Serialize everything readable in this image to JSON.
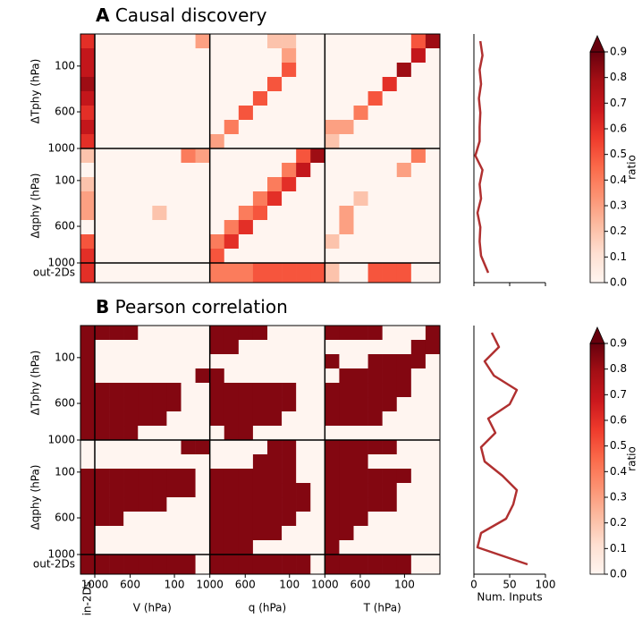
{
  "chart_data": [
    {
      "type": "heatmap",
      "label": "A",
      "title": "Causal discovery",
      "y_blocks": [
        {
          "name": "ΔTphy (hPa)",
          "ylim": [
            1000,
            -250
          ],
          "yticks": [
            100,
            600,
            1000
          ]
        },
        {
          "name": "Δqphy (hPa)",
          "ylim": [
            1000,
            -250
          ],
          "yticks": [
            100,
            600,
            1000
          ]
        },
        {
          "name": "out-2Ds"
        }
      ],
      "vlim": [
        0,
        0.9
      ],
      "colormap": [
        "#fff5f0",
        "#fee0d2",
        "#fcbba1",
        "#fc9272",
        "#fb6a4a",
        "#ef3b2c",
        "#cb181d",
        "#a50f15",
        "#67000d"
      ],
      "matrix": [
        [
          0.6,
          0,
          0,
          0,
          0,
          0,
          0,
          0,
          0.3,
          0,
          0,
          0,
          0,
          0.2,
          0.2,
          0,
          0,
          0,
          0,
          0,
          0,
          0,
          0,
          0.5,
          0.8
        ],
        [
          0.7,
          0,
          0,
          0,
          0,
          0,
          0,
          0,
          0,
          0,
          0,
          0,
          0,
          0,
          0.3,
          0,
          0,
          0,
          0,
          0,
          0,
          0,
          0,
          0.7,
          0
        ],
        [
          0.7,
          0,
          0,
          0,
          0,
          0,
          0,
          0,
          0,
          0,
          0,
          0,
          0,
          0,
          0.5,
          0,
          0,
          0,
          0,
          0,
          0,
          0,
          0.8,
          0,
          0
        ],
        [
          0.8,
          0,
          0,
          0,
          0,
          0,
          0,
          0,
          0,
          0,
          0,
          0,
          0,
          0.5,
          0,
          0,
          0,
          0,
          0,
          0,
          0,
          0.6,
          0,
          0,
          0
        ],
        [
          0.7,
          0,
          0,
          0,
          0,
          0,
          0,
          0,
          0,
          0,
          0,
          0,
          0.5,
          0,
          0,
          0,
          0,
          0,
          0,
          0,
          0.5,
          0,
          0,
          0,
          0
        ],
        [
          0.6,
          0,
          0,
          0,
          0,
          0,
          0,
          0,
          0,
          0,
          0,
          0.5,
          0,
          0,
          0,
          0,
          0,
          0,
          0,
          0.4,
          0,
          0,
          0,
          0,
          0
        ],
        [
          0.7,
          0,
          0,
          0,
          0,
          0,
          0,
          0,
          0,
          0,
          0.4,
          0,
          0,
          0,
          0,
          0,
          0,
          0.3,
          0.3,
          0,
          0,
          0,
          0,
          0,
          0
        ],
        [
          0.6,
          0,
          0,
          0,
          0,
          0,
          0,
          0,
          0,
          0.3,
          0,
          0,
          0,
          0,
          0,
          0,
          0,
          0.2,
          0,
          0,
          0,
          0,
          0,
          0,
          0
        ],
        [
          0.2,
          0,
          0,
          0,
          0,
          0,
          0,
          0.4,
          0.3,
          0,
          0,
          0,
          0,
          0,
          0,
          0.5,
          0.8,
          0,
          0,
          0,
          0,
          0,
          0,
          0.4,
          0
        ],
        [
          0,
          0,
          0,
          0,
          0,
          0,
          0,
          0,
          0,
          0,
          0,
          0,
          0,
          0,
          0.4,
          0.7,
          0,
          0,
          0,
          0,
          0,
          0,
          0.3,
          0,
          0
        ],
        [
          0.2,
          0,
          0,
          0,
          0,
          0,
          0,
          0,
          0,
          0,
          0,
          0,
          0,
          0.4,
          0.6,
          0,
          0,
          0,
          0,
          0,
          0,
          0,
          0,
          0,
          0
        ],
        [
          0.3,
          0,
          0,
          0,
          0,
          0,
          0,
          0,
          0,
          0,
          0,
          0,
          0.4,
          0.6,
          0,
          0,
          0,
          0,
          0,
          0.2,
          0,
          0,
          0,
          0,
          0
        ],
        [
          0.3,
          0,
          0,
          0,
          0,
          0.2,
          0,
          0,
          0,
          0,
          0,
          0.4,
          0.5,
          0,
          0,
          0,
          0,
          0,
          0.3,
          0,
          0,
          0,
          0,
          0,
          0
        ],
        [
          0,
          0,
          0,
          0,
          0,
          0,
          0,
          0,
          0,
          0,
          0.4,
          0.6,
          0,
          0,
          0,
          0,
          0,
          0,
          0.3,
          0,
          0,
          0,
          0,
          0,
          0
        ],
        [
          0.5,
          0,
          0,
          0,
          0,
          0,
          0,
          0,
          0,
          0.4,
          0.6,
          0,
          0,
          0,
          0,
          0,
          0,
          0.2,
          0,
          0,
          0,
          0,
          0,
          0,
          0
        ],
        [
          0.6,
          0,
          0,
          0,
          0,
          0,
          0,
          0,
          0,
          0.5,
          0,
          0,
          0,
          0,
          0,
          0,
          0,
          0,
          0,
          0,
          0,
          0,
          0,
          0,
          0
        ],
        [
          0.6,
          0,
          0,
          0,
          0,
          0,
          0,
          0,
          0,
          0.4,
          0.4,
          0.4,
          0.5,
          0.5,
          0.5,
          0.5,
          0.5,
          0.2,
          0,
          0,
          0.5,
          0.5,
          0.5,
          0,
          0
        ]
      ],
      "colorbar": {
        "label": "ratio",
        "ticks": [
          {
            "value": 0,
            "label": "0.0"
          },
          0.1,
          0.2,
          0.3,
          0.4,
          0.5,
          0.6,
          0.7,
          0.8,
          0.9
        ]
      },
      "profile": {
        "color": "#b03030",
        "xlim": [
          0,
          100
        ],
        "xticks": [
          0,
          50,
          100
        ],
        "values": [
          9,
          12,
          8,
          10,
          7,
          9,
          8,
          8,
          2,
          12,
          8,
          10,
          5,
          9,
          8,
          10,
          20
        ]
      }
    },
    {
      "type": "heatmap",
      "label": "B",
      "title": "Pearson correlation",
      "x_blocks": [
        {
          "name": "in-2Ds"
        },
        {
          "name": "V (hPa)",
          "xlim": [
            1000,
            -300
          ],
          "xticks": [
            1000,
            600,
            100
          ]
        },
        {
          "name": "q (hPa)",
          "xlim": [
            1000,
            -300
          ],
          "xticks": [
            1000,
            600,
            100
          ]
        },
        {
          "name": "T (hPa)",
          "xlim": [
            1000,
            -300
          ],
          "xticks": [
            1000,
            600,
            100
          ]
        }
      ],
      "y_blocks": [
        {
          "name": "ΔTphy (hPa)",
          "ylim": [
            1000,
            -250
          ],
          "yticks": [
            100,
            600,
            1000
          ]
        },
        {
          "name": "Δqphy (hPa)",
          "ylim": [
            1000,
            -250
          ],
          "yticks": [
            100,
            600,
            1000
          ]
        },
        {
          "name": "out-2Ds"
        }
      ],
      "vlim": [
        0,
        0.9
      ],
      "colormap": [
        "#fff5f0",
        "#fee0d2",
        "#fcbba1",
        "#fc9272",
        "#fb6a4a",
        "#ef3b2c",
        "#cb181d",
        "#a50f15",
        "#67000d"
      ],
      "matrix": [
        [
          0.85,
          0.85,
          0.85,
          0.85,
          0,
          0,
          0,
          0,
          0,
          0.85,
          0.85,
          0.85,
          0.85,
          0,
          0,
          0,
          0,
          0.85,
          0.85,
          0.85,
          0.85,
          0,
          0,
          0,
          0.85
        ],
        [
          0.85,
          0,
          0,
          0,
          0,
          0,
          0,
          0,
          0,
          0.85,
          0.85,
          0,
          0,
          0,
          0,
          0,
          0,
          0,
          0,
          0,
          0,
          0,
          0,
          0.85,
          0.85
        ],
        [
          0.85,
          0,
          0,
          0,
          0,
          0,
          0,
          0,
          0,
          0,
          0,
          0,
          0,
          0,
          0,
          0,
          0,
          0.85,
          0,
          0,
          0.85,
          0.85,
          0.85,
          0.85,
          0
        ],
        [
          0.85,
          0,
          0,
          0,
          0,
          0,
          0,
          0,
          0.85,
          0.85,
          0,
          0,
          0,
          0,
          0,
          0,
          0,
          0,
          0.85,
          0.85,
          0.85,
          0.85,
          0.85,
          0,
          0
        ],
        [
          0.85,
          0.85,
          0.85,
          0.85,
          0.85,
          0.85,
          0.85,
          0,
          0,
          0.85,
          0.85,
          0.85,
          0.85,
          0.85,
          0.85,
          0,
          0,
          0.85,
          0.85,
          0.85,
          0.85,
          0.85,
          0.85,
          0,
          0
        ],
        [
          0.85,
          0.85,
          0.85,
          0.85,
          0.85,
          0.85,
          0.85,
          0,
          0,
          0.85,
          0.85,
          0.85,
          0.85,
          0.85,
          0.85,
          0,
          0,
          0.85,
          0.85,
          0.85,
          0.85,
          0.85,
          0,
          0,
          0
        ],
        [
          0.85,
          0.85,
          0.85,
          0.85,
          0.85,
          0.85,
          0,
          0,
          0,
          0.85,
          0.85,
          0.85,
          0.85,
          0.85,
          0,
          0,
          0,
          0.85,
          0.85,
          0.85,
          0.85,
          0,
          0,
          0,
          0
        ],
        [
          0.85,
          0.85,
          0.85,
          0.85,
          0,
          0,
          0,
          0,
          0,
          0,
          0.85,
          0.85,
          0,
          0,
          0,
          0,
          0,
          0,
          0,
          0,
          0,
          0,
          0,
          0,
          0
        ],
        [
          0,
          0,
          0,
          0,
          0,
          0,
          0,
          0.85,
          0.85,
          0,
          0,
          0,
          0,
          0.85,
          0.85,
          0,
          0,
          0.85,
          0.85,
          0.85,
          0.85,
          0.85,
          0,
          0,
          0
        ],
        [
          0,
          0,
          0,
          0,
          0,
          0,
          0,
          0,
          0,
          0,
          0,
          0,
          0.85,
          0.85,
          0.85,
          0,
          0,
          0.85,
          0.85,
          0.85,
          0,
          0,
          0,
          0,
          0
        ],
        [
          0.85,
          0.85,
          0.85,
          0.85,
          0.85,
          0.85,
          0.85,
          0.85,
          0,
          0.85,
          0.85,
          0.85,
          0.85,
          0.85,
          0.85,
          0,
          0,
          0.85,
          0.85,
          0.85,
          0.85,
          0.85,
          0.85,
          0,
          0
        ],
        [
          0.85,
          0.85,
          0.85,
          0.85,
          0.85,
          0.85,
          0.85,
          0.85,
          0,
          0.85,
          0.85,
          0.85,
          0.85,
          0.85,
          0.85,
          0.85,
          0,
          0.85,
          0.85,
          0.85,
          0.85,
          0.85,
          0,
          0,
          0
        ],
        [
          0.85,
          0.85,
          0.85,
          0.85,
          0.85,
          0.85,
          0,
          0,
          0,
          0.85,
          0.85,
          0.85,
          0.85,
          0.85,
          0.85,
          0.85,
          0,
          0.85,
          0.85,
          0.85,
          0.85,
          0.85,
          0,
          0,
          0
        ],
        [
          0.85,
          0.85,
          0.85,
          0,
          0,
          0,
          0,
          0,
          0,
          0.85,
          0.85,
          0.85,
          0.85,
          0.85,
          0.85,
          0,
          0,
          0.85,
          0.85,
          0.85,
          0,
          0,
          0,
          0,
          0
        ],
        [
          0.85,
          0,
          0,
          0,
          0,
          0,
          0,
          0,
          0,
          0.85,
          0.85,
          0.85,
          0.85,
          0.85,
          0,
          0,
          0,
          0.85,
          0.85,
          0,
          0,
          0,
          0,
          0,
          0
        ],
        [
          0.85,
          0,
          0,
          0,
          0,
          0,
          0,
          0,
          0,
          0.85,
          0.85,
          0.85,
          0,
          0,
          0,
          0,
          0,
          0.85,
          0,
          0,
          0,
          0,
          0,
          0,
          0
        ],
        [
          0.85,
          0.85,
          0.85,
          0.85,
          0.85,
          0.85,
          0.85,
          0.85,
          0,
          0.85,
          0.85,
          0.85,
          0.85,
          0.85,
          0.85,
          0.85,
          0,
          0.85,
          0.85,
          0.85,
          0.85,
          0.85,
          0.85,
          0,
          0
        ]
      ],
      "colorbar": {
        "label": "ratio",
        "ticks": [
          {
            "value": 0,
            "label": "0.0"
          },
          0.1,
          0.2,
          0.3,
          0.4,
          0.5,
          0.6,
          0.7,
          0.8,
          0.9
        ]
      },
      "profile": {
        "color": "#b03030",
        "xlim": [
          0,
          100
        ],
        "xticks": [
          0,
          50,
          100
        ],
        "xlabel": "Num. Inputs",
        "values": [
          25,
          35,
          15,
          28,
          60,
          50,
          20,
          30,
          10,
          15,
          40,
          60,
          55,
          45,
          10,
          5,
          75
        ]
      }
    }
  ]
}
